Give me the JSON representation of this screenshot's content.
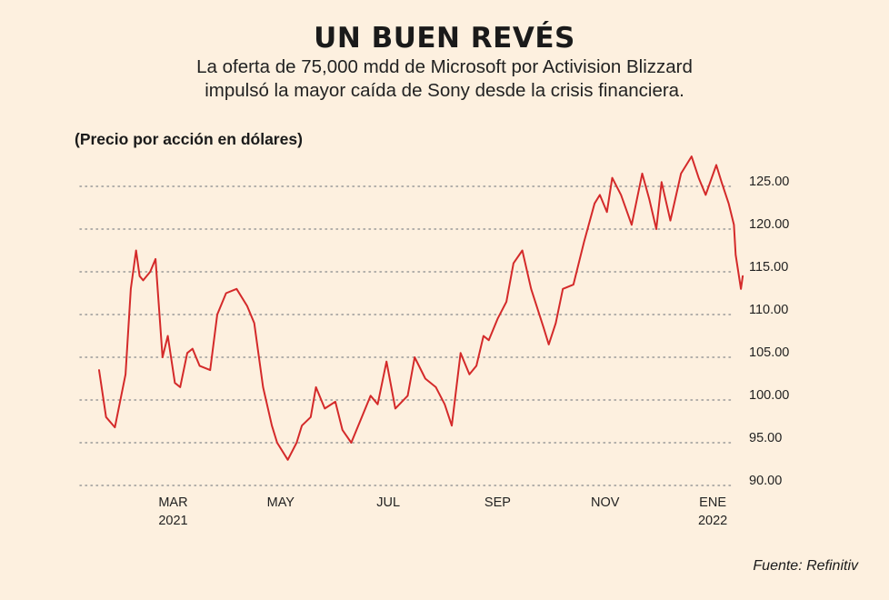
{
  "header": {
    "title": "UN BUEN REVÉS",
    "subtitle_line1": "La oferta de 75,000 mdd de Microsoft por Activision Blizzard",
    "subtitle_line2": "impulsó la mayor caída de Sony desde la crisis financiera."
  },
  "unit_label": "(Precio por acción en dólares)",
  "source": "Fuente: Refinitiv",
  "colors": {
    "background": "#fdf0df",
    "line": "#d42a2a",
    "grid": "#999999"
  },
  "chart_data": {
    "type": "line",
    "title": "UN BUEN REVÉS",
    "ylabel": "(Precio por acción en dólares)",
    "ylim": [
      90,
      125
    ],
    "y_ticks": [
      "90.00",
      "95.00",
      "100.00",
      "105.00",
      "110.00",
      "115.00",
      "120.00",
      "125.00"
    ],
    "grid": "horizontal dotted",
    "x_ticks": [
      {
        "label": "MAR",
        "sublabel": "2021",
        "date": "2021-03-01"
      },
      {
        "label": "MAY",
        "sublabel": "",
        "date": "2021-05-01"
      },
      {
        "label": "JUL",
        "sublabel": "",
        "date": "2021-07-01"
      },
      {
        "label": "SEP",
        "sublabel": "",
        "date": "2021-09-01"
      },
      {
        "label": "NOV",
        "sublabel": "",
        "date": "2021-11-01"
      },
      {
        "label": "ENE",
        "sublabel": "2022",
        "date": "2022-01-01"
      }
    ],
    "series": [
      {
        "x": [
          "2021-01-18",
          "2021-01-22",
          "2021-01-27",
          "2021-02-02",
          "2021-02-05",
          "2021-02-08",
          "2021-02-10",
          "2021-02-12",
          "2021-02-16",
          "2021-02-19",
          "2021-02-23",
          "2021-02-26",
          "2021-03-02",
          "2021-03-05",
          "2021-03-09",
          "2021-03-12",
          "2021-03-16",
          "2021-03-22",
          "2021-03-26",
          "2021-03-31",
          "2021-04-06",
          "2021-04-12",
          "2021-04-16",
          "2021-04-21",
          "2021-04-26",
          "2021-04-29",
          "2021-05-05",
          "2021-05-10",
          "2021-05-13",
          "2021-05-18",
          "2021-05-21",
          "2021-05-26",
          "2021-06-01",
          "2021-06-05",
          "2021-06-10",
          "2021-06-15",
          "2021-06-21",
          "2021-06-25",
          "2021-06-30",
          "2021-07-05",
          "2021-07-12",
          "2021-07-16",
          "2021-07-22",
          "2021-07-28",
          "2021-08-02",
          "2021-08-06",
          "2021-08-11",
          "2021-08-16",
          "2021-08-20",
          "2021-08-24",
          "2021-08-27",
          "2021-09-01",
          "2021-09-06",
          "2021-09-10",
          "2021-09-15",
          "2021-09-20",
          "2021-09-27",
          "2021-09-30",
          "2021-10-04",
          "2021-10-08",
          "2021-10-14",
          "2021-10-20",
          "2021-10-26",
          "2021-10-29",
          "2021-11-02",
          "2021-11-05",
          "2021-11-10",
          "2021-11-16",
          "2021-11-22",
          "2021-11-26",
          "2021-11-30",
          "2021-12-03",
          "2021-12-08",
          "2021-12-14",
          "2021-12-20",
          "2021-12-24",
          "2021-12-28",
          "2022-01-03",
          "2022-01-06",
          "2022-01-10",
          "2022-01-13",
          "2022-01-14",
          "2022-01-17",
          "2022-01-18"
        ],
        "values": [
          103.5,
          98.0,
          96.8,
          103.0,
          113.0,
          117.5,
          114.5,
          114.0,
          115.0,
          116.5,
          105.0,
          107.5,
          102.0,
          101.5,
          105.5,
          106.0,
          104.0,
          103.5,
          110.0,
          112.5,
          113.0,
          111.0,
          109.0,
          101.5,
          97.0,
          95.0,
          93.0,
          95.0,
          97.0,
          98.0,
          101.5,
          99.0,
          99.8,
          96.5,
          95.0,
          97.5,
          100.5,
          99.5,
          104.5,
          99.0,
          100.5,
          105.0,
          102.5,
          101.5,
          99.5,
          97.0,
          105.5,
          103.0,
          104.0,
          107.5,
          107.0,
          109.5,
          111.5,
          116.0,
          117.5,
          113.0,
          108.5,
          106.5,
          109.0,
          113.0,
          113.5,
          118.5,
          123.0,
          124.0,
          122.0,
          126.0,
          124.0,
          120.5,
          126.5,
          123.5,
          120.0,
          125.5,
          121.0,
          126.5,
          128.5,
          126.0,
          124.0,
          127.5,
          125.5,
          123.0,
          120.5,
          117.0,
          113.0,
          114.5
        ]
      }
    ]
  }
}
